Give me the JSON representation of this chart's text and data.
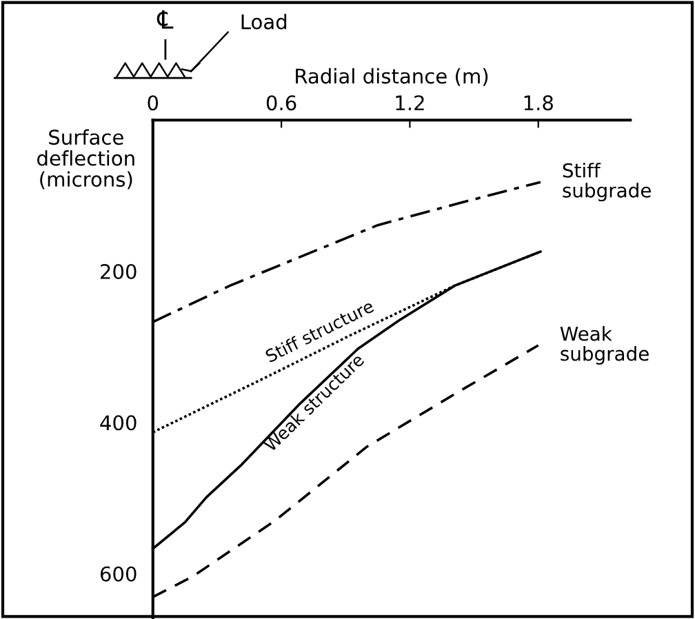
{
  "chart_data": {
    "type": "line",
    "xlabel": "Radial distance (m)",
    "ylabel": "Surface\ndeflection\n(microns)",
    "xlim": [
      0,
      2.23
    ],
    "xticks": [
      0,
      0.6,
      1.2,
      1.8
    ],
    "ylim": [
      660,
      0
    ],
    "yticks": [
      200,
      400,
      600
    ],
    "grid": false,
    "annotations": [
      "℄",
      "Load"
    ],
    "series": [
      {
        "name": "Stiff\nsubgrade",
        "color": "#000000",
        "line_style": "dashdot",
        "x": [
          0,
          0.36,
          1.05,
          1.43,
          1.81
        ],
        "values": [
          267,
          219,
          139,
          110,
          82
        ]
      },
      {
        "name": "Stiff structure",
        "color": "#000000",
        "line_style": "dotted",
        "x": [
          0,
          0.53,
          0.92,
          1.41,
          1.81
        ],
        "values": [
          413,
          340,
          285,
          219,
          174
        ]
      },
      {
        "name": "Weak structure",
        "color": "#000000",
        "line_style": "solid",
        "x": [
          0,
          0.15,
          0.25,
          0.41,
          0.68,
          0.96,
          1.15,
          1.41,
          1.81
        ],
        "values": [
          567,
          532,
          499,
          457,
          377,
          302,
          265,
          219,
          174
        ]
      },
      {
        "name": "Weak\nsubgrade",
        "color": "#000000",
        "line_style": "dashed",
        "x": [
          0,
          0.19,
          0.57,
          1.0,
          1.43,
          1.8
        ],
        "values": [
          631,
          603,
          530,
          432,
          359,
          298
        ]
      }
    ]
  }
}
